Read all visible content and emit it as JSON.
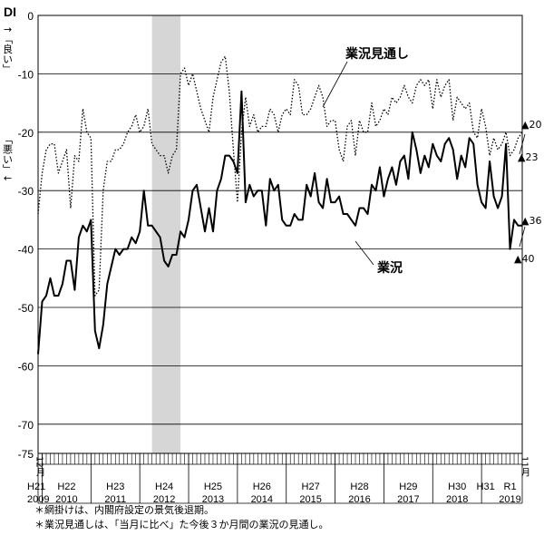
{
  "chart_data": {
    "type": "line",
    "y_unit_label": "DI",
    "y_direction_good": "↑「良い」",
    "y_direction_bad": "「悪い」↓",
    "ylim": [
      -75,
      0
    ],
    "yticks": [
      0,
      -10,
      -20,
      -30,
      -40,
      -50,
      -60,
      -70,
      -75
    ],
    "grid": "horizontal",
    "x_start_label": "12月",
    "x_end_label": "11月",
    "x_start": "2009-12",
    "x_end": "2019-11",
    "x_year_labels": [
      {
        "era": "H21",
        "year": "2009",
        "at": "2009-12"
      },
      {
        "era": "H22",
        "year": "2010",
        "at": "2010-07"
      },
      {
        "era": "H23",
        "year": "2011",
        "at": "2011-07"
      },
      {
        "era": "H24",
        "year": "2012",
        "at": "2012-07"
      },
      {
        "era": "H25",
        "year": "2013",
        "at": "2013-07"
      },
      {
        "era": "H26",
        "year": "2014",
        "at": "2014-07"
      },
      {
        "era": "H27",
        "year": "2015",
        "at": "2015-07"
      },
      {
        "era": "H28",
        "year": "2016",
        "at": "2016-07"
      },
      {
        "era": "H29",
        "year": "2017",
        "at": "2017-07"
      },
      {
        "era": "H30",
        "year": "2018",
        "at": "2018-07"
      },
      {
        "era": "H31",
        "year": "",
        "at": "2019-02"
      },
      {
        "era": "R1",
        "year": "2019",
        "at": "2019-08"
      }
    ],
    "recession_shade": {
      "start": "2012-04",
      "end": "2012-11"
    },
    "series": [
      {
        "name": "業況",
        "style": "solid",
        "x": [
          "2009-12",
          "2010-01",
          "2010-02",
          "2010-03",
          "2010-04",
          "2010-05",
          "2010-06",
          "2010-07",
          "2010-08",
          "2010-09",
          "2010-10",
          "2010-11",
          "2010-12",
          "2011-01",
          "2011-02",
          "2011-03",
          "2011-04",
          "2011-05",
          "2011-06",
          "2011-07",
          "2011-08",
          "2011-09",
          "2011-10",
          "2011-11",
          "2011-12",
          "2012-01",
          "2012-02",
          "2012-03",
          "2012-04",
          "2012-05",
          "2012-06",
          "2012-07",
          "2012-08",
          "2012-09",
          "2012-10",
          "2012-11",
          "2012-12",
          "2013-01",
          "2013-02",
          "2013-03",
          "2013-04",
          "2013-05",
          "2013-06",
          "2013-07",
          "2013-08",
          "2013-09",
          "2013-10",
          "2013-11",
          "2013-12",
          "2014-01",
          "2014-02",
          "2014-03",
          "2014-04",
          "2014-05",
          "2014-06",
          "2014-07",
          "2014-08",
          "2014-09",
          "2014-10",
          "2014-11",
          "2014-12",
          "2015-01",
          "2015-02",
          "2015-03",
          "2015-04",
          "2015-05",
          "2015-06",
          "2015-07",
          "2015-08",
          "2015-09",
          "2015-10",
          "2015-11",
          "2015-12",
          "2016-01",
          "2016-02",
          "2016-03",
          "2016-04",
          "2016-05",
          "2016-06",
          "2016-07",
          "2016-08",
          "2016-09",
          "2016-10",
          "2016-11",
          "2016-12",
          "2017-01",
          "2017-02",
          "2017-03",
          "2017-04",
          "2017-05",
          "2017-06",
          "2017-07",
          "2017-08",
          "2017-09",
          "2017-10",
          "2017-11",
          "2017-12",
          "2018-01",
          "2018-02",
          "2018-03",
          "2018-04",
          "2018-05",
          "2018-06",
          "2018-07",
          "2018-08",
          "2018-09",
          "2018-10",
          "2018-11",
          "2018-12",
          "2019-01",
          "2019-02",
          "2019-03",
          "2019-04",
          "2019-05",
          "2019-06",
          "2019-07",
          "2019-08",
          "2019-09",
          "2019-10",
          "2019-11"
        ],
        "values": [
          -58,
          -49,
          -48,
          -45,
          -48,
          -48,
          -46,
          -42,
          -42,
          -47,
          -38,
          -36,
          -37,
          -35,
          -54,
          -57,
          -53,
          -46,
          -43,
          -40,
          -41,
          -40,
          -40,
          -38,
          -39,
          -37,
          -30,
          -36,
          -36,
          -37,
          -38,
          -42,
          -43,
          -41,
          -41,
          -37,
          -38,
          -35,
          -30,
          -29,
          -33,
          -37,
          -33,
          -37,
          -30,
          -28,
          -24,
          -24,
          -25,
          -27,
          -13,
          -32,
          -29,
          -31,
          -30,
          -30,
          -36,
          -28,
          -30,
          -29,
          -35,
          -36,
          -36,
          -34,
          -35,
          -35,
          -29,
          -31,
          -27,
          -32,
          -33,
          -28,
          -32,
          -32,
          -31,
          -34,
          -34,
          -35,
          -36,
          -33,
          -33,
          -34,
          -29,
          -30,
          -26,
          -31,
          -28,
          -26,
          -29,
          -25,
          -24,
          -28,
          -20,
          -23,
          -27,
          -24,
          -26,
          -22,
          -24,
          -25,
          -22,
          -21,
          -23,
          -28,
          -24,
          -26,
          -21,
          -22,
          -29,
          -32,
          -33,
          -25,
          -31,
          -33,
          -31,
          -22,
          -40,
          -35,
          -36,
          -36
        ],
        "end_label": "▲40",
        "end_label_b": "▲36"
      },
      {
        "name": "業況見通し",
        "style": "dotted",
        "x": [
          "2009-12",
          "2010-01",
          "2010-02",
          "2010-03",
          "2010-04",
          "2010-05",
          "2010-06",
          "2010-07",
          "2010-08",
          "2010-09",
          "2010-10",
          "2010-11",
          "2010-12",
          "2011-01",
          "2011-02",
          "2011-03",
          "2011-04",
          "2011-05",
          "2011-06",
          "2011-07",
          "2011-08",
          "2011-09",
          "2011-10",
          "2011-11",
          "2011-12",
          "2012-01",
          "2012-02",
          "2012-03",
          "2012-04",
          "2012-05",
          "2012-06",
          "2012-07",
          "2012-08",
          "2012-09",
          "2012-10",
          "2012-11",
          "2012-12",
          "2013-01",
          "2013-02",
          "2013-03",
          "2013-04",
          "2013-05",
          "2013-06",
          "2013-07",
          "2013-08",
          "2013-09",
          "2013-10",
          "2013-11",
          "2013-12",
          "2014-01",
          "2014-02",
          "2014-03",
          "2014-04",
          "2014-05",
          "2014-06",
          "2014-07",
          "2014-08",
          "2014-09",
          "2014-10",
          "2014-11",
          "2014-12",
          "2015-01",
          "2015-02",
          "2015-03",
          "2015-04",
          "2015-05",
          "2015-06",
          "2015-07",
          "2015-08",
          "2015-09",
          "2015-10",
          "2015-11",
          "2015-12",
          "2016-01",
          "2016-02",
          "2016-03",
          "2016-04",
          "2016-05",
          "2016-06",
          "2016-07",
          "2016-08",
          "2016-09",
          "2016-10",
          "2016-11",
          "2016-12",
          "2017-01",
          "2017-02",
          "2017-03",
          "2017-04",
          "2017-05",
          "2017-06",
          "2017-07",
          "2017-08",
          "2017-09",
          "2017-10",
          "2017-11",
          "2017-12",
          "2018-01",
          "2018-02",
          "2018-03",
          "2018-04",
          "2018-05",
          "2018-06",
          "2018-07",
          "2018-08",
          "2018-09",
          "2018-10",
          "2018-11",
          "2018-12",
          "2019-01",
          "2019-02",
          "2019-03",
          "2019-04",
          "2019-05",
          "2019-06",
          "2019-07",
          "2019-08",
          "2019-09",
          "2019-10",
          "2019-11"
        ],
        "values": [
          -34,
          -27,
          -23,
          -22,
          -22,
          -27,
          -25,
          -23,
          -33,
          -24,
          -25,
          -16,
          -20,
          -21,
          -48,
          -47,
          -30,
          -25,
          -25,
          -23,
          -23,
          -22,
          -20,
          -19,
          -17,
          -20,
          -19,
          -16,
          -22,
          -23,
          -24,
          -24,
          -27,
          -24,
          -23,
          -10,
          -9,
          -12,
          -10,
          -13,
          -16,
          -18,
          -20,
          -14,
          -11,
          -8,
          -7,
          -13,
          -23,
          -32,
          -20,
          -14,
          -19,
          -17,
          -20,
          -19,
          -19,
          -16,
          -17,
          -20,
          -17,
          -16,
          -17,
          -11,
          -12,
          -17,
          -17,
          -16,
          -14,
          -12,
          -14,
          -19,
          -18,
          -18,
          -23,
          -25,
          -19,
          -18,
          -24,
          -18,
          -20,
          -20,
          -15,
          -19,
          -18,
          -16,
          -17,
          -14,
          -15,
          -14,
          -12,
          -14,
          -15,
          -12,
          -11,
          -12,
          -11,
          -16,
          -11,
          -14,
          -12,
          -11,
          -18,
          -14,
          -15,
          -16,
          -15,
          -20,
          -21,
          -16,
          -19,
          -24,
          -21,
          -23,
          -22,
          -20,
          -24,
          -23,
          -21,
          -20
        ],
        "end_label": "▲20",
        "end_label_b": "▲23"
      }
    ],
    "footnotes": [
      "＊網掛けは、内閣府設定の景気後退期。",
      "＊業況見通しは、「当月に比べ」た今後３か月間の業況の見通し。"
    ]
  }
}
